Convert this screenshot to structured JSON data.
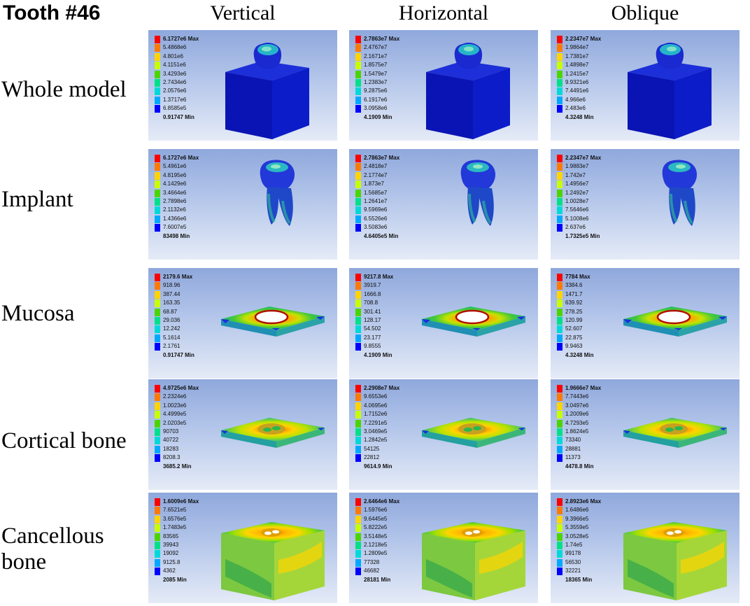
{
  "title": "Tooth #46",
  "columns": [
    "Vertical",
    "Horizontal",
    "Oblique"
  ],
  "colors": [
    "#ff0000",
    "#ff7a00",
    "#ffd400",
    "#c8ff00",
    "#4cd400",
    "#00e08a",
    "#00d9d9",
    "#00a8ff",
    "#0000ff"
  ],
  "rows": [
    {
      "label": "Whole model",
      "model": "whole",
      "panels": [
        {
          "view": "Vertical",
          "labels": [
            "6.1727e6 Max",
            "5.4868e6",
            "4.801e6",
            "4.1151e6",
            "3.4293e6",
            "2.7434e6",
            "2.0576e6",
            "1.3717e6",
            "6.8585e5",
            "0.91747 Min"
          ]
        },
        {
          "view": "Horizontal",
          "labels": [
            "2.7863e7 Max",
            "2.4767e7",
            "2.1671e7",
            "1.8575e7",
            "1.5479e7",
            "1.2383e7",
            "9.2875e6",
            "6.1917e6",
            "3.0958e6",
            "4.1909 Min"
          ]
        },
        {
          "view": "Oblique",
          "labels": [
            "2.2347e7 Max",
            "1.9864e7",
            "1.7381e7",
            "1.4898e7",
            "1.2415e7",
            "9.9321e6",
            "7.4491e6",
            "4.966e6",
            "2.483e6",
            "4.3248 Min"
          ]
        }
      ]
    },
    {
      "label": "Implant",
      "model": "implant",
      "panels": [
        {
          "view": "Vertical",
          "labels": [
            "6.1727e6 Max",
            "5.4961e6",
            "4.8195e6",
            "4.1429e6",
            "3.4664e6",
            "2.7898e6",
            "2.1132e6",
            "1.4366e6",
            "7.6007e5",
            "83498 Min"
          ]
        },
        {
          "view": "Horizontal",
          "labels": [
            "2.7863e7 Max",
            "2.4818e7",
            "2.1774e7",
            "1.873e7",
            "1.5685e7",
            "1.2641e7",
            "9.5969e6",
            "6.5526e6",
            "3.5083e6",
            "4.6405e5 Min"
          ]
        },
        {
          "view": "Oblique",
          "labels": [
            "2.2347e7 Max",
            "1.9883e7",
            "1.742e7",
            "1.4956e7",
            "1.2492e7",
            "1.0028e7",
            "7.5646e6",
            "5.1008e6",
            "2.637e6",
            "1.7325e5 Min"
          ]
        }
      ]
    },
    {
      "label": "Mucosa",
      "model": "mucosa",
      "panels": [
        {
          "view": "Vertical",
          "labels": [
            "2179.6 Max",
            "918.96",
            "387.44",
            "163.35",
            "68.87",
            "29.036",
            "12.242",
            "5.1614",
            "2.1761",
            "0.91747 Min"
          ]
        },
        {
          "view": "Horizontal",
          "labels": [
            "9217.8 Max",
            "3919.7",
            "1666.8",
            "708.8",
            "301.41",
            "128.17",
            "54.502",
            "23.177",
            "9.8555",
            "4.1909 Min"
          ]
        },
        {
          "view": "Oblique",
          "labels": [
            "7784 Max",
            "3384.6",
            "1471.7",
            "639.92",
            "278.25",
            "120.99",
            "52.607",
            "22.875",
            "9.9463",
            "4.3248 Min"
          ]
        }
      ]
    },
    {
      "label": "Cortical bone",
      "model": "cortical",
      "panels": [
        {
          "view": "Vertical",
          "labels": [
            "4.9725e6 Max",
            "2.2324e6",
            "1.0023e6",
            "4.4999e5",
            "2.0203e5",
            "90703",
            "40722",
            "18283",
            "8208.3",
            "3685.2 Min"
          ]
        },
        {
          "view": "Horizontal",
          "labels": [
            "2.2908e7 Max",
            "9.6553e6",
            "4.0695e6",
            "1.7152e6",
            "7.2291e5",
            "3.0469e5",
            "1.2842e5",
            "54125",
            "22812",
            "9614.9 Min"
          ]
        },
        {
          "view": "Oblique",
          "labels": [
            "1.9666e7 Max",
            "7.7443e6",
            "3.0497e6",
            "1.2009e6",
            "4.7293e5",
            "1.8624e5",
            "73340",
            "28881",
            "11373",
            "4478.8 Min"
          ]
        }
      ]
    },
    {
      "label": "Cancellous bone",
      "model": "cancellous",
      "panels": [
        {
          "view": "Vertical",
          "labels": [
            "1.6009e6 Max",
            "7.6521e5",
            "3.6576e5",
            "1.7483e5",
            "83565",
            "39943",
            "19092",
            "9125.8",
            "4362",
            "2085 Min"
          ]
        },
        {
          "view": "Horizontal",
          "labels": [
            "2.6464e6 Max",
            "1.5976e6",
            "9.6445e5",
            "5.8222e5",
            "3.5148e5",
            "2.1218e5",
            "1.2809e5",
            "77328",
            "46682",
            "28181 Min"
          ]
        },
        {
          "view": "Oblique",
          "labels": [
            "2.8923e6 Max",
            "1.6486e6",
            "9.3966e5",
            "5.3559e5",
            "3.0528e5",
            "1.74e5",
            "99178",
            "56530",
            "32221",
            "18365 Min"
          ]
        }
      ]
    }
  ]
}
